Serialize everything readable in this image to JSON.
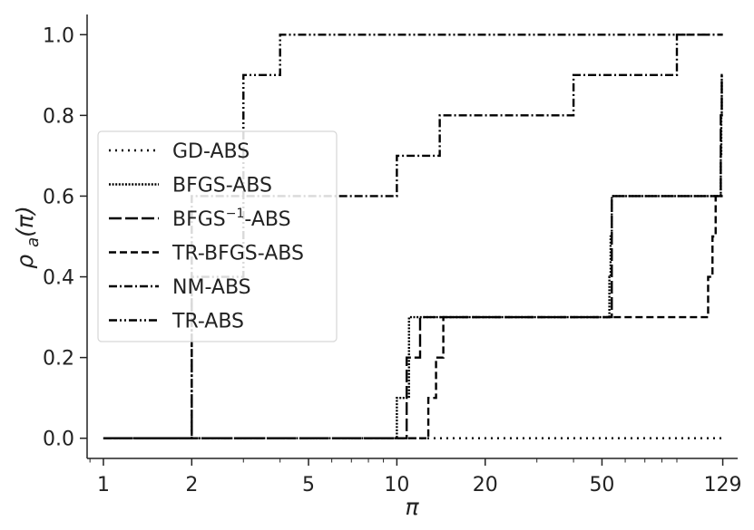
{
  "chart_data": {
    "type": "line",
    "title": "",
    "xlabel": "π",
    "ylabel": "ρ_a(π)",
    "xscale": "log",
    "xlim": [
      0.88,
      145
    ],
    "ylim": [
      -0.05,
      1.05
    ],
    "xticks": [
      1,
      2,
      5,
      10,
      20,
      50,
      129
    ],
    "xtick_labels": [
      "1",
      "2",
      "5",
      "10",
      "20",
      "50",
      "129"
    ],
    "yticks": [
      0.0,
      0.2,
      0.4,
      0.6,
      0.8,
      1.0
    ],
    "ytick_labels": [
      "0.0",
      "0.2",
      "0.4",
      "0.6",
      "0.8",
      "1.0"
    ],
    "grid": false,
    "legend_position": "center-left",
    "series": [
      {
        "name": "GD-ABS",
        "style": "dotted",
        "x": [
          1,
          129
        ],
        "y": [
          0.0,
          0.0
        ]
      },
      {
        "name": "BFGS-ABS",
        "style": "densely-dotted",
        "x": [
          1,
          10,
          10.5,
          11,
          53,
          53.5,
          54,
          127,
          127.5,
          128,
          129
        ],
        "y": [
          0.0,
          0.1,
          0.1,
          0.3,
          0.4,
          0.5,
          0.6,
          0.7,
          0.8,
          0.9,
          0.9
        ]
      },
      {
        "name": "BFGS⁻¹-ABS",
        "style": "long-dash",
        "x": [
          1,
          10.8,
          11.5,
          12,
          54,
          127,
          128,
          129
        ],
        "y": [
          0.0,
          0.2,
          0.2,
          0.3,
          0.6,
          0.8,
          0.9,
          0.9
        ]
      },
      {
        "name": "TR-BFGS-ABS",
        "style": "dash",
        "x": [
          1,
          12.8,
          13.6,
          14.4,
          115,
          119,
          122,
          129
        ],
        "y": [
          0.0,
          0.1,
          0.2,
          0.3,
          0.4,
          0.5,
          0.6,
          0.6
        ]
      },
      {
        "name": "NM-ABS",
        "style": "dash-dot",
        "x": [
          1,
          2,
          10,
          14,
          40,
          90,
          129
        ],
        "y": [
          0.0,
          0.6,
          0.7,
          0.8,
          0.9,
          1.0,
          1.0
        ]
      },
      {
        "name": "TR-ABS",
        "style": "dash-dot-dot",
        "x": [
          1,
          2,
          3,
          4,
          129
        ],
        "y": [
          0.0,
          0.4,
          0.9,
          1.0,
          1.0
        ]
      }
    ]
  },
  "legend": {
    "items": [
      {
        "label": "GD-ABS",
        "style": "dotted"
      },
      {
        "label": "BFGS-ABS",
        "style": "densely-dotted"
      },
      {
        "label_main": "BFGS",
        "label_sup": "−1",
        "label_tail": "-ABS",
        "style": "long-dash"
      },
      {
        "label": "TR-BFGS-ABS",
        "style": "dash"
      },
      {
        "label": "NM-ABS",
        "style": "dash-dot"
      },
      {
        "label": "TR-ABS",
        "style": "dash-dot-dot"
      }
    ]
  }
}
